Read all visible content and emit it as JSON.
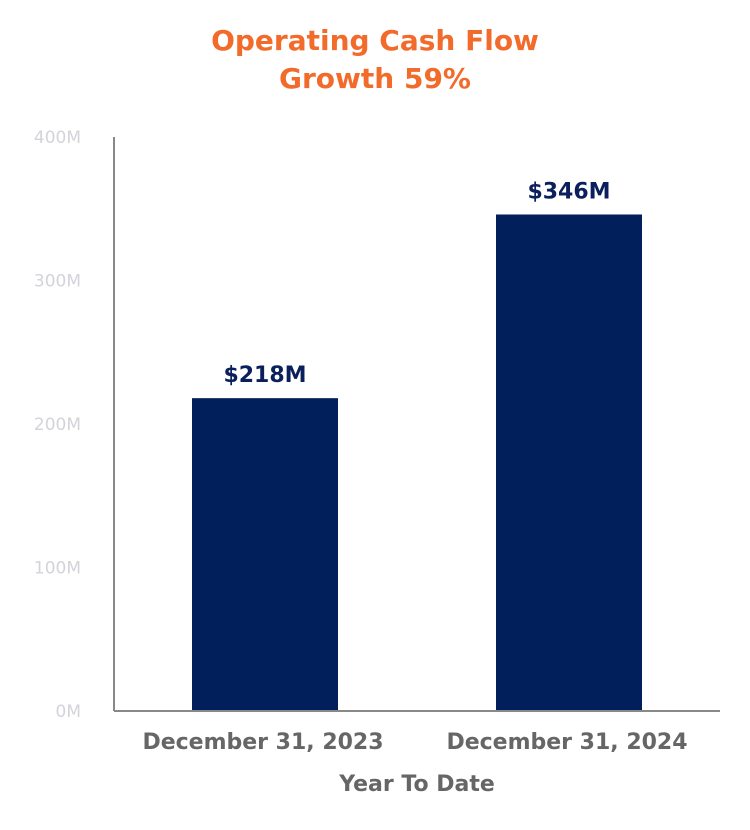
{
  "chart_data": {
    "type": "bar",
    "title": [
      "Operating Cash Flow",
      "Growth 59%"
    ],
    "xlabel": "Year To Date",
    "ylabel": "",
    "categories": [
      "December 31, 2023",
      "December 31, 2024"
    ],
    "values": [
      218,
      346
    ],
    "data_labels": [
      "$218M",
      "$346M"
    ],
    "ylim": [
      0,
      400
    ],
    "yticks": [
      0,
      100,
      200,
      300,
      400
    ],
    "ytick_labels": [
      "0M",
      "100M",
      "200M",
      "300M",
      "400M"
    ],
    "grid": false,
    "colors": {
      "bar": "#001F5B",
      "title": "#F26B2A",
      "axis_text": "#666666",
      "tick_text": "#D3D3DB"
    }
  }
}
